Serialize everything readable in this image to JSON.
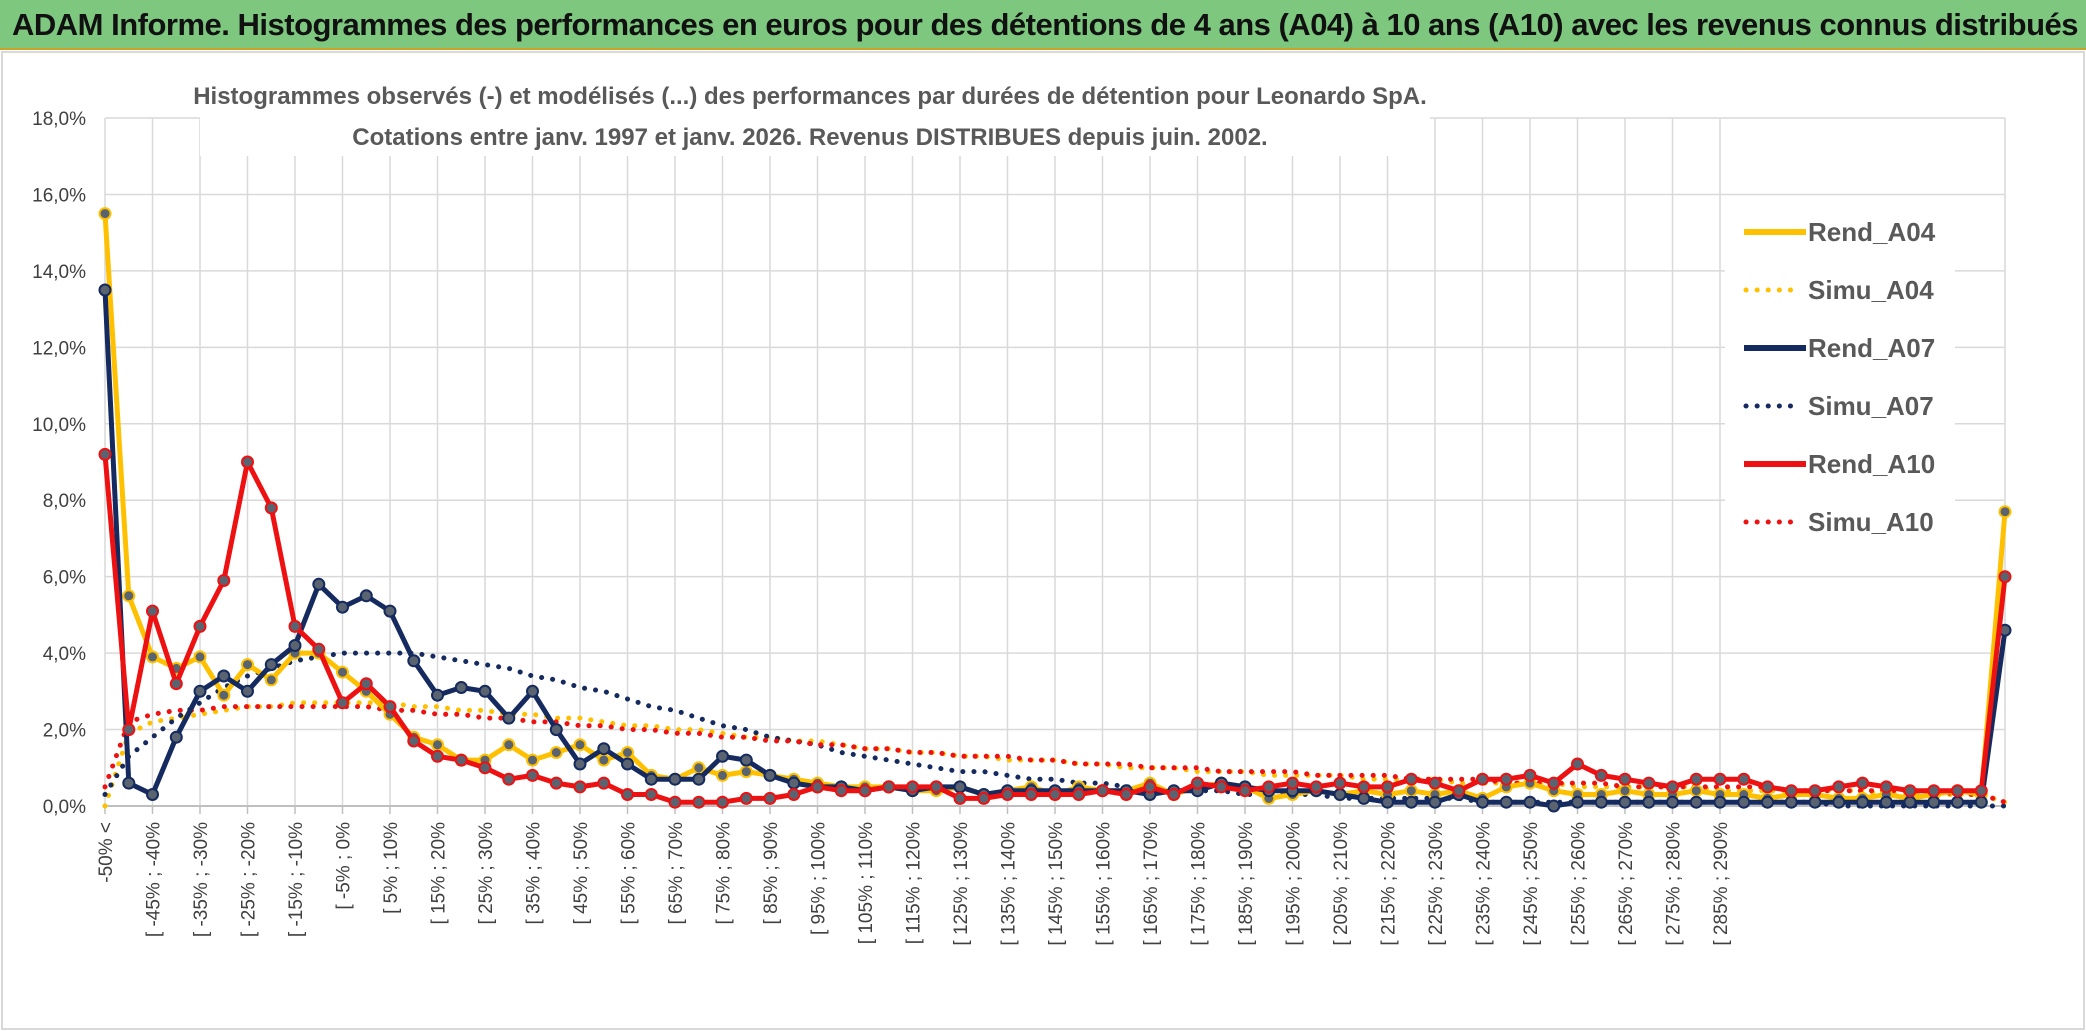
{
  "header": {
    "title": "ADAM Informe. Histogrammes des performances en euros pour des détentions de 4 ans (A04) à 10 ans (A10) avec les revenus connus distribués"
  },
  "chart_data": {
    "type": "line",
    "title_line1": "Histogrammes observés (-) et modélisés (...) des performances par durées de détention pour Leonardo SpA.",
    "title_line2": "Cotations entre janv. 1997 et janv. 2026. Revenus DISTRIBUES depuis juin. 2002.",
    "ylim": [
      0,
      18
    ],
    "y_ticks": [
      "0,0%",
      "2,0%",
      "4,0%",
      "6,0%",
      "8,0%",
      "10,0%",
      "12,0%",
      "14,0%",
      "16,0%",
      "18,0%"
    ],
    "x_labels": [
      "-50% <",
      "[ -45% ; -40%",
      "[ -35% ; -30%",
      "[ -25% ; -20%",
      "[ -15% ; -10%",
      "[ -5% ; 0%",
      "[ 5% ; 10%",
      "[ 15% ; 20%",
      "[ 25% ; 30%",
      "[ 35% ; 40%",
      "[ 45% ; 50%",
      "[ 55% ; 60%",
      "[ 65% ; 70%",
      "[ 75% ; 80%",
      "[ 85% ; 90%",
      "[ 95% ; 100%",
      "[ 105% ; 110%",
      "[ 115% ; 120%",
      "[ 125% ; 130%",
      "[ 135% ; 140%",
      "[ 145% ; 150%",
      "[ 155% ; 160%",
      "[ 165% ; 170%",
      "[ 175% ; 180%",
      "[ 185% ; 190%",
      "[ 195% ; 200%",
      "[ 205% ; 210%",
      "[ 215% ; 220%",
      "[ 225% ; 230%",
      "[ 235% ; 240%",
      "[ 245% ; 250%",
      "[ 255% ; 260%",
      "[ 265% ; 270%",
      "[ 275% ; 280%",
      "[ 285% ; 290%"
    ],
    "series": [
      {
        "name": "Rend_A04",
        "color": "#ffc000",
        "style": "solid",
        "values": [
          15.5,
          5.5,
          3.9,
          3.6,
          3.9,
          2.9,
          3.7,
          3.3,
          4.0,
          4.0,
          3.5,
          3.0,
          2.4,
          1.8,
          1.6,
          1.2,
          1.2,
          1.6,
          1.2,
          1.4,
          1.6,
          1.2,
          1.4,
          0.8,
          0.7,
          1.0,
          0.8,
          0.9,
          0.8,
          0.7,
          0.6,
          0.5,
          0.5,
          0.5,
          0.4,
          0.4,
          0.5,
          0.3,
          0.4,
          0.5,
          0.3,
          0.5,
          0.4,
          0.4,
          0.6,
          0.3,
          0.5,
          0.6,
          0.5,
          0.2,
          0.3,
          0.4,
          0.3,
          0.4,
          0.3,
          0.4,
          0.3,
          0.4,
          0.2,
          0.5,
          0.6,
          0.4,
          0.3,
          0.3,
          0.4,
          0.3,
          0.3,
          0.4,
          0.3,
          0.3,
          0.2,
          0.3,
          0.3,
          0.2,
          0.2,
          0.3,
          0.2,
          0.3,
          0.4,
          0.3,
          7.7
        ]
      },
      {
        "name": "Simu_A04",
        "color": "#ffc000",
        "style": "dotted",
        "values": [
          0.0,
          1.9,
          2.2,
          2.3,
          2.4,
          2.5,
          2.6,
          2.6,
          2.7,
          2.7,
          2.7,
          2.7,
          2.7,
          2.6,
          2.6,
          2.5,
          2.5,
          2.4,
          2.4,
          2.3,
          2.3,
          2.2,
          2.1,
          2.1,
          2.0,
          2.0,
          1.9,
          1.8,
          1.8,
          1.7,
          1.7,
          1.6,
          1.5,
          1.5,
          1.4,
          1.4,
          1.3,
          1.3,
          1.2,
          1.2,
          1.2,
          1.1,
          1.1,
          1.0,
          1.0,
          1.0,
          0.9,
          0.9,
          0.9,
          0.8,
          0.8,
          0.8,
          0.8,
          0.7,
          0.7,
          0.7,
          0.7,
          0.6,
          0.6,
          0.6,
          0.6,
          0.6,
          0.5,
          0.5,
          0.5,
          0.5,
          0.5,
          0.5,
          0.4,
          0.4,
          0.4,
          0.4,
          0.4,
          0.4,
          0.4,
          0.3,
          0.3,
          0.3,
          0.3,
          0.3,
          0.1
        ]
      },
      {
        "name": "Rend_A07",
        "color": "#152a5e",
        "style": "solid",
        "values": [
          13.5,
          0.6,
          0.3,
          1.8,
          3.0,
          3.4,
          3.0,
          3.7,
          4.2,
          5.8,
          5.2,
          5.5,
          5.1,
          3.8,
          2.9,
          3.1,
          3.0,
          2.3,
          3.0,
          2.0,
          1.1,
          1.5,
          1.1,
          0.7,
          0.7,
          0.7,
          1.3,
          1.2,
          0.8,
          0.6,
          0.5,
          0.5,
          0.4,
          0.5,
          0.4,
          0.5,
          0.5,
          0.3,
          0.4,
          0.4,
          0.4,
          0.4,
          0.4,
          0.4,
          0.3,
          0.4,
          0.4,
          0.6,
          0.5,
          0.4,
          0.4,
          0.4,
          0.3,
          0.2,
          0.1,
          0.1,
          0.1,
          0.3,
          0.1,
          0.1,
          0.1,
          0.0,
          0.1,
          0.1,
          0.1,
          0.1,
          0.1,
          0.1,
          0.1,
          0.1,
          0.1,
          0.1,
          0.1,
          0.1,
          0.1,
          0.1,
          0.1,
          0.1,
          0.1,
          0.1,
          4.6
        ]
      },
      {
        "name": "Simu_A07",
        "color": "#152a5e",
        "style": "dotted",
        "values": [
          0.3,
          1.3,
          1.8,
          2.3,
          2.7,
          3.1,
          3.4,
          3.6,
          3.8,
          3.9,
          4.0,
          4.0,
          4.0,
          4.0,
          3.9,
          3.8,
          3.7,
          3.6,
          3.4,
          3.3,
          3.1,
          3.0,
          2.8,
          2.6,
          2.5,
          2.3,
          2.1,
          2.0,
          1.8,
          1.7,
          1.6,
          1.4,
          1.3,
          1.2,
          1.1,
          1.0,
          0.9,
          0.9,
          0.8,
          0.7,
          0.7,
          0.6,
          0.6,
          0.5,
          0.5,
          0.4,
          0.4,
          0.4,
          0.3,
          0.3,
          0.3,
          0.3,
          0.2,
          0.2,
          0.2,
          0.2,
          0.2,
          0.2,
          0.1,
          0.1,
          0.1,
          0.1,
          0.1,
          0.1,
          0.1,
          0.1,
          0.1,
          0.1,
          0.1,
          0.1,
          0.1,
          0.1,
          0.1,
          0.0,
          0.0,
          0.0,
          0.0,
          0.0,
          0.0,
          0.0,
          0.0
        ]
      },
      {
        "name": "Rend_A10",
        "color": "#ee1111",
        "style": "solid",
        "values": [
          9.2,
          2.0,
          5.1,
          3.2,
          4.7,
          5.9,
          9.0,
          7.8,
          4.7,
          4.1,
          2.7,
          3.2,
          2.6,
          1.7,
          1.3,
          1.2,
          1.0,
          0.7,
          0.8,
          0.6,
          0.5,
          0.6,
          0.3,
          0.3,
          0.1,
          0.1,
          0.1,
          0.2,
          0.2,
          0.3,
          0.5,
          0.4,
          0.4,
          0.5,
          0.5,
          0.5,
          0.2,
          0.2,
          0.3,
          0.3,
          0.3,
          0.3,
          0.4,
          0.3,
          0.5,
          0.3,
          0.6,
          0.5,
          0.4,
          0.5,
          0.6,
          0.5,
          0.6,
          0.5,
          0.5,
          0.7,
          0.6,
          0.4,
          0.7,
          0.7,
          0.8,
          0.6,
          1.1,
          0.8,
          0.7,
          0.6,
          0.5,
          0.7,
          0.7,
          0.7,
          0.5,
          0.4,
          0.4,
          0.5,
          0.6,
          0.5,
          0.4,
          0.4,
          0.4,
          0.4,
          6.0
        ]
      },
      {
        "name": "Simu_A10",
        "color": "#ee1111",
        "style": "dotted",
        "values": [
          0.5,
          2.2,
          2.4,
          2.5,
          2.5,
          2.6,
          2.6,
          2.6,
          2.6,
          2.6,
          2.6,
          2.6,
          2.5,
          2.5,
          2.4,
          2.4,
          2.3,
          2.3,
          2.2,
          2.2,
          2.1,
          2.1,
          2.0,
          2.0,
          1.9,
          1.9,
          1.8,
          1.8,
          1.7,
          1.7,
          1.6,
          1.6,
          1.5,
          1.5,
          1.4,
          1.4,
          1.3,
          1.3,
          1.3,
          1.2,
          1.2,
          1.1,
          1.1,
          1.1,
          1.0,
          1.0,
          1.0,
          0.9,
          0.9,
          0.9,
          0.9,
          0.8,
          0.8,
          0.8,
          0.8,
          0.7,
          0.7,
          0.7,
          0.7,
          0.6,
          0.6,
          0.6,
          0.6,
          0.6,
          0.5,
          0.5,
          0.5,
          0.5,
          0.5,
          0.5,
          0.5,
          0.4,
          0.4,
          0.4,
          0.4,
          0.4,
          0.4,
          0.4,
          0.3,
          0.3,
          0.1
        ]
      }
    ]
  }
}
